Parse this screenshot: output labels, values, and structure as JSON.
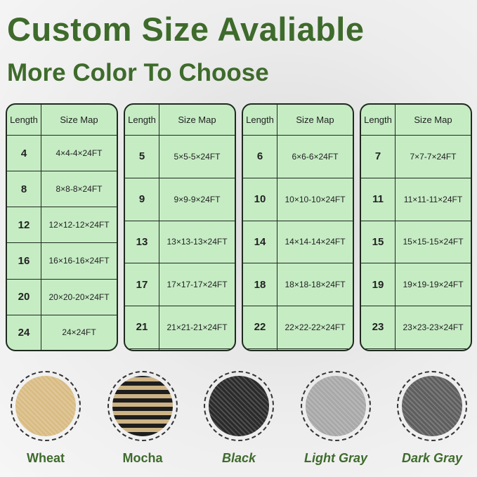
{
  "title": "Custom Size Avaliable",
  "subtitle": "More Color To Choose",
  "table_headers": [
    "Length",
    "Size Map"
  ],
  "tables": [
    {
      "rows": [
        [
          "4",
          "4×4-4×24FT"
        ],
        [
          "8",
          "8×8-8×24FT"
        ],
        [
          "12",
          "12×12-12×24FT"
        ],
        [
          "16",
          "16×16-16×24FT"
        ],
        [
          "20",
          "20×20-20×24FT"
        ],
        [
          "24",
          "24×24FT"
        ]
      ]
    },
    {
      "rows": [
        [
          "5",
          "5×5-5×24FT"
        ],
        [
          "9",
          "9×9-9×24FT"
        ],
        [
          "13",
          "13×13-13×24FT"
        ],
        [
          "17",
          "17×17-17×24FT"
        ],
        [
          "21",
          "21×21-21×24FT"
        ],
        [
          "",
          ""
        ]
      ]
    },
    {
      "rows": [
        [
          "6",
          "6×6-6×24FT"
        ],
        [
          "10",
          "10×10-10×24FT"
        ],
        [
          "14",
          "14×14-14×24FT"
        ],
        [
          "18",
          "18×18-18×24FT"
        ],
        [
          "22",
          "22×22-22×24FT"
        ],
        [
          "",
          ""
        ]
      ]
    },
    {
      "rows": [
        [
          "7",
          "7×7-7×24FT"
        ],
        [
          "11",
          "11×11-11×24FT"
        ],
        [
          "15",
          "15×15-15×24FT"
        ],
        [
          "19",
          "19×19-19×24FT"
        ],
        [
          "23",
          "23×23-23×24FT"
        ],
        [
          "",
          ""
        ]
      ]
    }
  ],
  "colors": [
    {
      "name": "Wheat",
      "hex": "#d9bc84",
      "italic": false
    },
    {
      "name": "Mocha",
      "hex": "#6e5a3c",
      "italic": false
    },
    {
      "name": "Black",
      "hex": "#2a2a2a",
      "italic": true
    },
    {
      "name": "Light Gray",
      "hex": "#a8a8a8",
      "italic": true
    },
    {
      "name": "Dark Gray",
      "hex": "#5e5e5e",
      "italic": true
    }
  ],
  "accent": "#3e6b2b",
  "table_fill": "#c6ecc4"
}
